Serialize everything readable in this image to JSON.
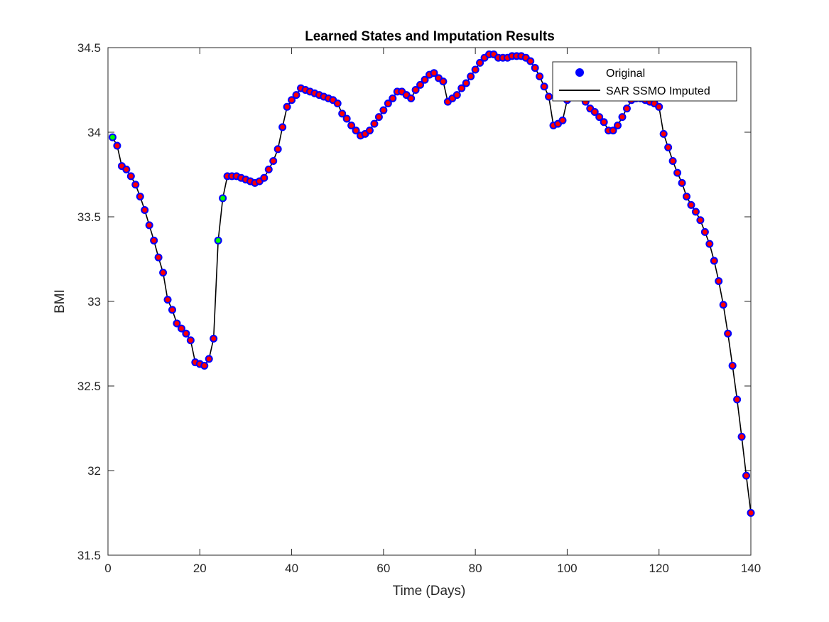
{
  "chart_data": {
    "type": "line",
    "title": "Learned States and Imputation Results",
    "xlabel": "Time (Days)",
    "ylabel": "BMI",
    "xlim": [
      0,
      140
    ],
    "ylim": [
      31.5,
      34.5
    ],
    "xticks": [
      "0",
      "20",
      "40",
      "60",
      "80",
      "100",
      "120",
      "140"
    ],
    "yticks": [
      "31.5",
      "32",
      "32.5",
      "33",
      "33.5",
      "34",
      "34.5"
    ],
    "grid": false,
    "legend_position": "top-right",
    "series": [
      {
        "name": "Original",
        "style": "markers",
        "color": "#0000ff",
        "x": [
          1,
          2,
          3,
          4,
          5,
          6,
          7,
          8,
          9,
          10,
          11,
          12,
          13,
          14,
          15,
          16,
          17,
          18,
          19,
          20,
          21,
          22,
          23,
          24,
          25,
          26,
          27,
          28,
          29,
          30,
          31,
          32,
          33,
          34,
          35,
          36,
          37,
          38,
          39,
          40,
          41,
          42,
          43,
          44,
          45,
          46,
          47,
          48,
          49,
          50,
          51,
          52,
          53,
          54,
          55,
          56,
          57,
          58,
          59,
          60,
          61,
          62,
          63,
          64,
          65,
          66,
          67,
          68,
          69,
          70,
          71,
          72,
          73,
          74,
          75,
          76,
          77,
          78,
          79,
          80,
          81,
          82,
          83,
          84,
          85,
          86,
          87,
          88,
          89,
          90,
          91,
          92,
          93,
          94,
          95,
          96,
          97,
          98,
          99,
          100,
          101,
          102,
          103,
          104,
          105,
          106,
          107,
          108,
          109,
          110,
          111,
          112,
          113,
          114,
          115,
          116,
          117,
          118,
          119,
          120,
          121,
          122,
          123,
          124,
          125,
          126,
          127,
          128,
          129,
          130,
          131,
          132,
          133,
          134,
          135,
          136,
          137,
          138,
          139,
          140
        ],
        "y": [
          33.97,
          33.92,
          33.8,
          33.78,
          33.74,
          33.69,
          33.62,
          33.54,
          33.45,
          33.36,
          33.26,
          33.17,
          33.01,
          32.95,
          32.87,
          32.84,
          32.81,
          32.77,
          32.64,
          32.63,
          32.62,
          32.66,
          32.78,
          33.36,
          33.61,
          33.74,
          33.74,
          33.74,
          33.73,
          33.72,
          33.71,
          33.7,
          33.71,
          33.73,
          33.78,
          33.83,
          33.9,
          34.03,
          34.15,
          34.19,
          34.22,
          34.26,
          34.25,
          34.24,
          34.23,
          34.22,
          34.21,
          34.2,
          34.19,
          34.17,
          34.11,
          34.08,
          34.04,
          34.01,
          33.98,
          33.99,
          34.01,
          34.05,
          34.09,
          34.13,
          34.17,
          34.2,
          34.24,
          34.24,
          34.22,
          34.2,
          34.25,
          34.28,
          34.31,
          34.34,
          34.35,
          34.32,
          34.3,
          34.18,
          34.2,
          34.22,
          34.26,
          34.29,
          34.33,
          34.37,
          34.41,
          34.44,
          34.46,
          34.46,
          34.44,
          34.44,
          34.44,
          34.45,
          34.45,
          34.45,
          34.44,
          34.42,
          34.38,
          34.33,
          34.27,
          34.21,
          34.04,
          34.05,
          34.07,
          34.19,
          34.22,
          34.22,
          34.21,
          34.18,
          34.14,
          34.12,
          34.09,
          34.06,
          34.01,
          34.01,
          34.04,
          34.09,
          34.14,
          34.19,
          34.2,
          34.2,
          34.19,
          34.18,
          34.17,
          34.15,
          33.99,
          33.91,
          33.83,
          33.76,
          33.7,
          33.62,
          33.57,
          33.53,
          33.48,
          33.41,
          33.34,
          33.24,
          33.12,
          32.98,
          32.81,
          32.62,
          32.42,
          32.2,
          31.97,
          31.75
        ]
      },
      {
        "name": "SAR SSMO Imputed",
        "style": "line",
        "color": "#000000"
      }
    ],
    "overlay_markers": {
      "observed_color": "#ff0000",
      "imputed_color": "#00ff00",
      "imputed_x": [
        1,
        24,
        25
      ]
    }
  }
}
